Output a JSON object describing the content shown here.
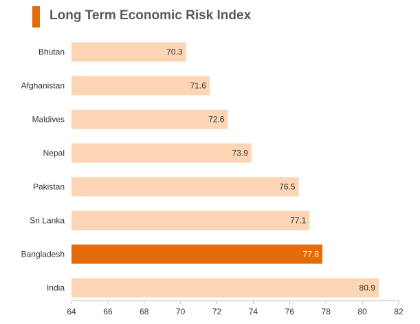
{
  "chart_data": {
    "type": "bar",
    "orientation": "horizontal",
    "title": "Long Term Economic Risk Index",
    "categories": [
      "Bhutan",
      "Afghanistan",
      "Maldives",
      "Nepal",
      "Pakistan",
      "Sri Lanka",
      "Bangladesh",
      "India"
    ],
    "values": [
      70.3,
      71.6,
      72.6,
      73.9,
      76.5,
      77.1,
      77.8,
      80.9
    ],
    "value_labels": [
      "70.3",
      "71.6",
      "72.6",
      "73.9",
      "76.5",
      "77.1",
      "77.8",
      "80.9"
    ],
    "highlight": "Bangladesh",
    "xlim": [
      64,
      82
    ],
    "xticks": [
      "64",
      "66",
      "68",
      "70",
      "72",
      "74",
      "76",
      "78",
      "80",
      "82"
    ],
    "xlabel": "",
    "ylabel": "",
    "grid": false,
    "legend": "none"
  },
  "colors": {
    "bar": "#fcd5b5",
    "highlight": "#e36c09",
    "accent": "#e36c09",
    "label_dark": "#333333",
    "label_light": "#ffffff",
    "axis": "#bfbfbf"
  }
}
